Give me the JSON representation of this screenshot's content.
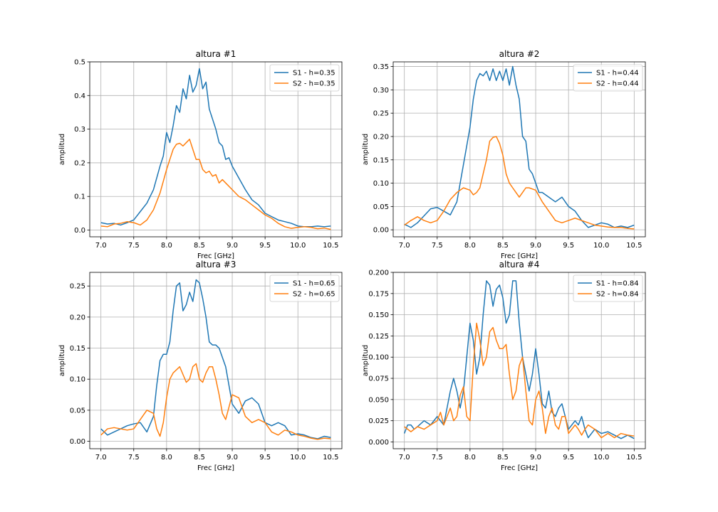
{
  "chart_data": [
    {
      "type": "line",
      "title": "altura #1",
      "xlabel": "Frec [GHz]",
      "ylabel": "amplitud",
      "xlim": [
        6.83,
        10.67
      ],
      "ylim": [
        -0.02,
        0.5
      ],
      "xticks": [
        7.0,
        7.5,
        8.0,
        8.5,
        9.0,
        9.5,
        10.0,
        10.5
      ],
      "yticks": [
        0.0,
        0.1,
        0.2,
        0.3,
        0.4,
        0.5
      ],
      "ytick_labels": [
        "0.0",
        "0.1",
        "0.2",
        "0.3",
        "0.4",
        "0.5"
      ],
      "grid": true,
      "legend_position": "top-right",
      "series": [
        {
          "name": "S1 - h=0.35",
          "color": "#1f77b4",
          "x": [
            7.0,
            7.1,
            7.2,
            7.3,
            7.4,
            7.5,
            7.6,
            7.7,
            7.8,
            7.9,
            7.95,
            8.0,
            8.05,
            8.1,
            8.15,
            8.2,
            8.25,
            8.3,
            8.35,
            8.4,
            8.45,
            8.5,
            8.55,
            8.6,
            8.65,
            8.7,
            8.75,
            8.8,
            8.85,
            8.9,
            8.95,
            9.0,
            9.1,
            9.2,
            9.3,
            9.4,
            9.5,
            9.6,
            9.7,
            9.8,
            9.9,
            10.0,
            10.1,
            10.2,
            10.3,
            10.4,
            10.5
          ],
          "y": [
            0.022,
            0.018,
            0.02,
            0.015,
            0.022,
            0.03,
            0.055,
            0.08,
            0.12,
            0.19,
            0.22,
            0.29,
            0.26,
            0.31,
            0.37,
            0.35,
            0.42,
            0.39,
            0.46,
            0.41,
            0.43,
            0.48,
            0.42,
            0.44,
            0.36,
            0.33,
            0.3,
            0.26,
            0.25,
            0.21,
            0.215,
            0.19,
            0.155,
            0.12,
            0.09,
            0.075,
            0.05,
            0.04,
            0.03,
            0.025,
            0.02,
            0.012,
            0.01,
            0.01,
            0.012,
            0.01,
            0.012
          ]
        },
        {
          "name": "S2 - h=0.35",
          "color": "#ff7f0e",
          "x": [
            7.0,
            7.1,
            7.2,
            7.3,
            7.4,
            7.5,
            7.6,
            7.7,
            7.8,
            7.9,
            8.0,
            8.05,
            8.1,
            8.15,
            8.2,
            8.25,
            8.3,
            8.35,
            8.4,
            8.45,
            8.5,
            8.55,
            8.6,
            8.65,
            8.7,
            8.75,
            8.8,
            8.85,
            8.9,
            9.0,
            9.1,
            9.2,
            9.3,
            9.4,
            9.5,
            9.6,
            9.7,
            9.8,
            9.9,
            10.0,
            10.1,
            10.2,
            10.3,
            10.4,
            10.5
          ],
          "y": [
            0.012,
            0.01,
            0.018,
            0.02,
            0.025,
            0.022,
            0.015,
            0.03,
            0.06,
            0.11,
            0.18,
            0.21,
            0.24,
            0.255,
            0.258,
            0.25,
            0.26,
            0.27,
            0.24,
            0.21,
            0.21,
            0.18,
            0.17,
            0.175,
            0.16,
            0.165,
            0.14,
            0.15,
            0.14,
            0.12,
            0.1,
            0.09,
            0.075,
            0.06,
            0.045,
            0.035,
            0.02,
            0.01,
            0.005,
            0.008,
            0.01,
            0.008,
            0.004,
            0.006,
            0.002
          ]
        }
      ]
    },
    {
      "type": "line",
      "title": "altura #2",
      "xlabel": "Frec [GHz]",
      "ylabel": "amplitud",
      "xlim": [
        6.83,
        10.67
      ],
      "ylim": [
        -0.015,
        0.36
      ],
      "xticks": [
        7.0,
        7.5,
        8.0,
        8.5,
        9.0,
        9.5,
        10.0,
        10.5
      ],
      "yticks": [
        0.0,
        0.05,
        0.1,
        0.15,
        0.2,
        0.25,
        0.3,
        0.35
      ],
      "ytick_labels": [
        "0.00",
        "0.05",
        "0.10",
        "0.15",
        "0.20",
        "0.25",
        "0.30",
        "0.35"
      ],
      "grid": true,
      "legend_position": "top-right",
      "series": [
        {
          "name": "S1 - h=0.44",
          "color": "#1f77b4",
          "x": [
            7.0,
            7.1,
            7.2,
            7.3,
            7.4,
            7.5,
            7.6,
            7.7,
            7.8,
            7.9,
            8.0,
            8.05,
            8.1,
            8.15,
            8.2,
            8.25,
            8.3,
            8.35,
            8.4,
            8.45,
            8.5,
            8.55,
            8.6,
            8.65,
            8.7,
            8.75,
            8.8,
            8.85,
            8.9,
            8.95,
            9.0,
            9.05,
            9.1,
            9.2,
            9.3,
            9.4,
            9.5,
            9.6,
            9.7,
            9.8,
            9.9,
            10.0,
            10.1,
            10.2,
            10.3,
            10.4,
            10.5
          ],
          "y": [
            0.012,
            0.005,
            0.015,
            0.03,
            0.045,
            0.048,
            0.04,
            0.032,
            0.06,
            0.14,
            0.22,
            0.28,
            0.32,
            0.335,
            0.33,
            0.34,
            0.32,
            0.345,
            0.32,
            0.34,
            0.32,
            0.345,
            0.31,
            0.35,
            0.31,
            0.28,
            0.2,
            0.19,
            0.13,
            0.12,
            0.1,
            0.08,
            0.08,
            0.07,
            0.06,
            0.07,
            0.05,
            0.04,
            0.02,
            0.005,
            0.01,
            0.015,
            0.012,
            0.005,
            0.008,
            0.005,
            0.01
          ]
        },
        {
          "name": "S2 - h=0.44",
          "color": "#ff7f0e",
          "x": [
            7.0,
            7.1,
            7.2,
            7.3,
            7.4,
            7.5,
            7.6,
            7.7,
            7.8,
            7.9,
            8.0,
            8.05,
            8.1,
            8.15,
            8.2,
            8.25,
            8.3,
            8.35,
            8.4,
            8.45,
            8.5,
            8.55,
            8.6,
            8.65,
            8.7,
            8.75,
            8.8,
            8.85,
            8.9,
            9.0,
            9.1,
            9.2,
            9.3,
            9.4,
            9.5,
            9.6,
            9.7,
            9.8,
            9.9,
            10.0,
            10.1,
            10.2,
            10.3,
            10.4,
            10.5
          ],
          "y": [
            0.01,
            0.02,
            0.028,
            0.02,
            0.015,
            0.02,
            0.04,
            0.065,
            0.08,
            0.09,
            0.085,
            0.075,
            0.08,
            0.09,
            0.12,
            0.15,
            0.19,
            0.198,
            0.2,
            0.185,
            0.16,
            0.12,
            0.1,
            0.09,
            0.08,
            0.07,
            0.08,
            0.09,
            0.09,
            0.085,
            0.06,
            0.04,
            0.02,
            0.015,
            0.02,
            0.025,
            0.02,
            0.015,
            0.01,
            0.008,
            0.006,
            0.005,
            0.005,
            0.003,
            0.002
          ]
        }
      ]
    },
    {
      "type": "line",
      "title": "altura #3",
      "xlabel": "Frec [GHz]",
      "ylabel": "amplitud",
      "xlim": [
        6.83,
        10.67
      ],
      "ylim": [
        -0.012,
        0.272
      ],
      "xticks": [
        7.0,
        7.5,
        8.0,
        8.5,
        9.0,
        9.5,
        10.0,
        10.5
      ],
      "yticks": [
        0.0,
        0.05,
        0.1,
        0.15,
        0.2,
        0.25
      ],
      "ytick_labels": [
        "0.00",
        "0.05",
        "0.10",
        "0.15",
        "0.20",
        "0.25"
      ],
      "grid": true,
      "legend_position": "top-right",
      "series": [
        {
          "name": "S1 - h=0.65",
          "color": "#1f77b4",
          "x": [
            7.0,
            7.1,
            7.2,
            7.3,
            7.4,
            7.5,
            7.6,
            7.7,
            7.8,
            7.85,
            7.9,
            7.95,
            8.0,
            8.05,
            8.1,
            8.15,
            8.2,
            8.25,
            8.3,
            8.35,
            8.4,
            8.45,
            8.5,
            8.55,
            8.6,
            8.65,
            8.7,
            8.75,
            8.8,
            8.9,
            9.0,
            9.1,
            9.2,
            9.3,
            9.4,
            9.5,
            9.6,
            9.7,
            9.8,
            9.9,
            10.0,
            10.1,
            10.2,
            10.3,
            10.4,
            10.5
          ],
          "y": [
            0.02,
            0.01,
            0.015,
            0.02,
            0.025,
            0.028,
            0.03,
            0.015,
            0.04,
            0.09,
            0.13,
            0.14,
            0.14,
            0.16,
            0.21,
            0.25,
            0.255,
            0.21,
            0.22,
            0.24,
            0.225,
            0.26,
            0.255,
            0.23,
            0.2,
            0.16,
            0.155,
            0.155,
            0.15,
            0.12,
            0.06,
            0.045,
            0.065,
            0.07,
            0.06,
            0.03,
            0.025,
            0.03,
            0.025,
            0.01,
            0.012,
            0.01,
            0.006,
            0.004,
            0.008,
            0.006
          ]
        },
        {
          "name": "S2 - h=0.65",
          "color": "#ff7f0e",
          "x": [
            7.0,
            7.1,
            7.2,
            7.3,
            7.4,
            7.5,
            7.6,
            7.7,
            7.8,
            7.85,
            7.9,
            7.95,
            8.0,
            8.05,
            8.1,
            8.2,
            8.3,
            8.35,
            8.4,
            8.45,
            8.5,
            8.55,
            8.6,
            8.65,
            8.7,
            8.75,
            8.8,
            8.85,
            8.9,
            9.0,
            9.1,
            9.2,
            9.3,
            9.4,
            9.5,
            9.6,
            9.7,
            9.8,
            9.9,
            10.0,
            10.1,
            10.2,
            10.3,
            10.4,
            10.5
          ],
          "y": [
            0.01,
            0.02,
            0.022,
            0.02,
            0.018,
            0.02,
            0.035,
            0.05,
            0.045,
            0.02,
            0.008,
            0.03,
            0.07,
            0.1,
            0.11,
            0.12,
            0.095,
            0.1,
            0.12,
            0.125,
            0.1,
            0.095,
            0.11,
            0.12,
            0.12,
            0.1,
            0.075,
            0.045,
            0.035,
            0.075,
            0.07,
            0.04,
            0.03,
            0.035,
            0.03,
            0.015,
            0.01,
            0.018,
            0.015,
            0.01,
            0.008,
            0.005,
            0.003,
            0.005,
            0.004
          ]
        }
      ]
    },
    {
      "type": "line",
      "title": "altura #4",
      "xlabel": "Frec [GHz]",
      "ylabel": "amplitud",
      "xlim": [
        6.83,
        10.67
      ],
      "ylim": [
        -0.008,
        0.2
      ],
      "xticks": [
        7.0,
        7.5,
        8.0,
        8.5,
        9.0,
        9.5,
        10.0,
        10.5
      ],
      "yticks": [
        0.0,
        0.025,
        0.05,
        0.075,
        0.1,
        0.125,
        0.15,
        0.175,
        0.2
      ],
      "ytick_labels": [
        "0.000",
        "0.025",
        "0.050",
        "0.075",
        "0.100",
        "0.125",
        "0.150",
        "0.175",
        "0.200"
      ],
      "grid": true,
      "legend_position": "top-right",
      "series": [
        {
          "name": "S1 - h=0.84",
          "color": "#1f77b4",
          "x": [
            7.0,
            7.05,
            7.1,
            7.15,
            7.2,
            7.3,
            7.4,
            7.5,
            7.55,
            7.6,
            7.65,
            7.7,
            7.75,
            7.8,
            7.85,
            7.9,
            7.95,
            8.0,
            8.05,
            8.1,
            8.15,
            8.2,
            8.25,
            8.3,
            8.35,
            8.4,
            8.45,
            8.5,
            8.55,
            8.6,
            8.65,
            8.7,
            8.75,
            8.8,
            8.85,
            8.9,
            8.95,
            9.0,
            9.05,
            9.1,
            9.15,
            9.2,
            9.25,
            9.3,
            9.35,
            9.4,
            9.45,
            9.5,
            9.55,
            9.6,
            9.65,
            9.7,
            9.75,
            9.8,
            9.9,
            10.0,
            10.1,
            10.2,
            10.3,
            10.4,
            10.5
          ],
          "y": [
            0.01,
            0.02,
            0.02,
            0.015,
            0.018,
            0.025,
            0.02,
            0.03,
            0.025,
            0.02,
            0.04,
            0.06,
            0.075,
            0.06,
            0.04,
            0.06,
            0.1,
            0.14,
            0.12,
            0.08,
            0.1,
            0.15,
            0.19,
            0.185,
            0.16,
            0.18,
            0.185,
            0.17,
            0.14,
            0.15,
            0.19,
            0.19,
            0.14,
            0.1,
            0.08,
            0.06,
            0.08,
            0.11,
            0.08,
            0.045,
            0.04,
            0.06,
            0.035,
            0.03,
            0.04,
            0.045,
            0.03,
            0.015,
            0.02,
            0.025,
            0.02,
            0.03,
            0.015,
            0.005,
            0.015,
            0.01,
            0.012,
            0.008,
            0.004,
            0.008,
            0.004
          ]
        },
        {
          "name": "S2 - h=0.84",
          "color": "#ff7f0e",
          "x": [
            7.0,
            7.1,
            7.2,
            7.3,
            7.4,
            7.5,
            7.55,
            7.6,
            7.65,
            7.7,
            7.75,
            7.8,
            7.85,
            7.9,
            7.95,
            8.0,
            8.05,
            8.1,
            8.15,
            8.2,
            8.25,
            8.3,
            8.35,
            8.4,
            8.45,
            8.5,
            8.55,
            8.6,
            8.65,
            8.7,
            8.75,
            8.8,
            8.85,
            8.9,
            8.95,
            9.0,
            9.05,
            9.1,
            9.15,
            9.2,
            9.25,
            9.3,
            9.35,
            9.4,
            9.45,
            9.5,
            9.55,
            9.6,
            9.65,
            9.7,
            9.75,
            9.8,
            9.9,
            10.0,
            10.1,
            10.2,
            10.3,
            10.4,
            10.5
          ],
          "y": [
            0.018,
            0.012,
            0.018,
            0.015,
            0.02,
            0.025,
            0.035,
            0.02,
            0.03,
            0.04,
            0.025,
            0.03,
            0.055,
            0.065,
            0.03,
            0.025,
            0.09,
            0.14,
            0.12,
            0.09,
            0.1,
            0.13,
            0.135,
            0.12,
            0.11,
            0.11,
            0.115,
            0.08,
            0.05,
            0.06,
            0.09,
            0.1,
            0.06,
            0.025,
            0.02,
            0.05,
            0.06,
            0.04,
            0.01,
            0.03,
            0.04,
            0.02,
            0.015,
            0.03,
            0.03,
            0.01,
            0.015,
            0.02,
            0.015,
            0.008,
            0.015,
            0.02,
            0.015,
            0.005,
            0.01,
            0.005,
            0.01,
            0.008,
            0.007
          ]
        }
      ]
    }
  ]
}
